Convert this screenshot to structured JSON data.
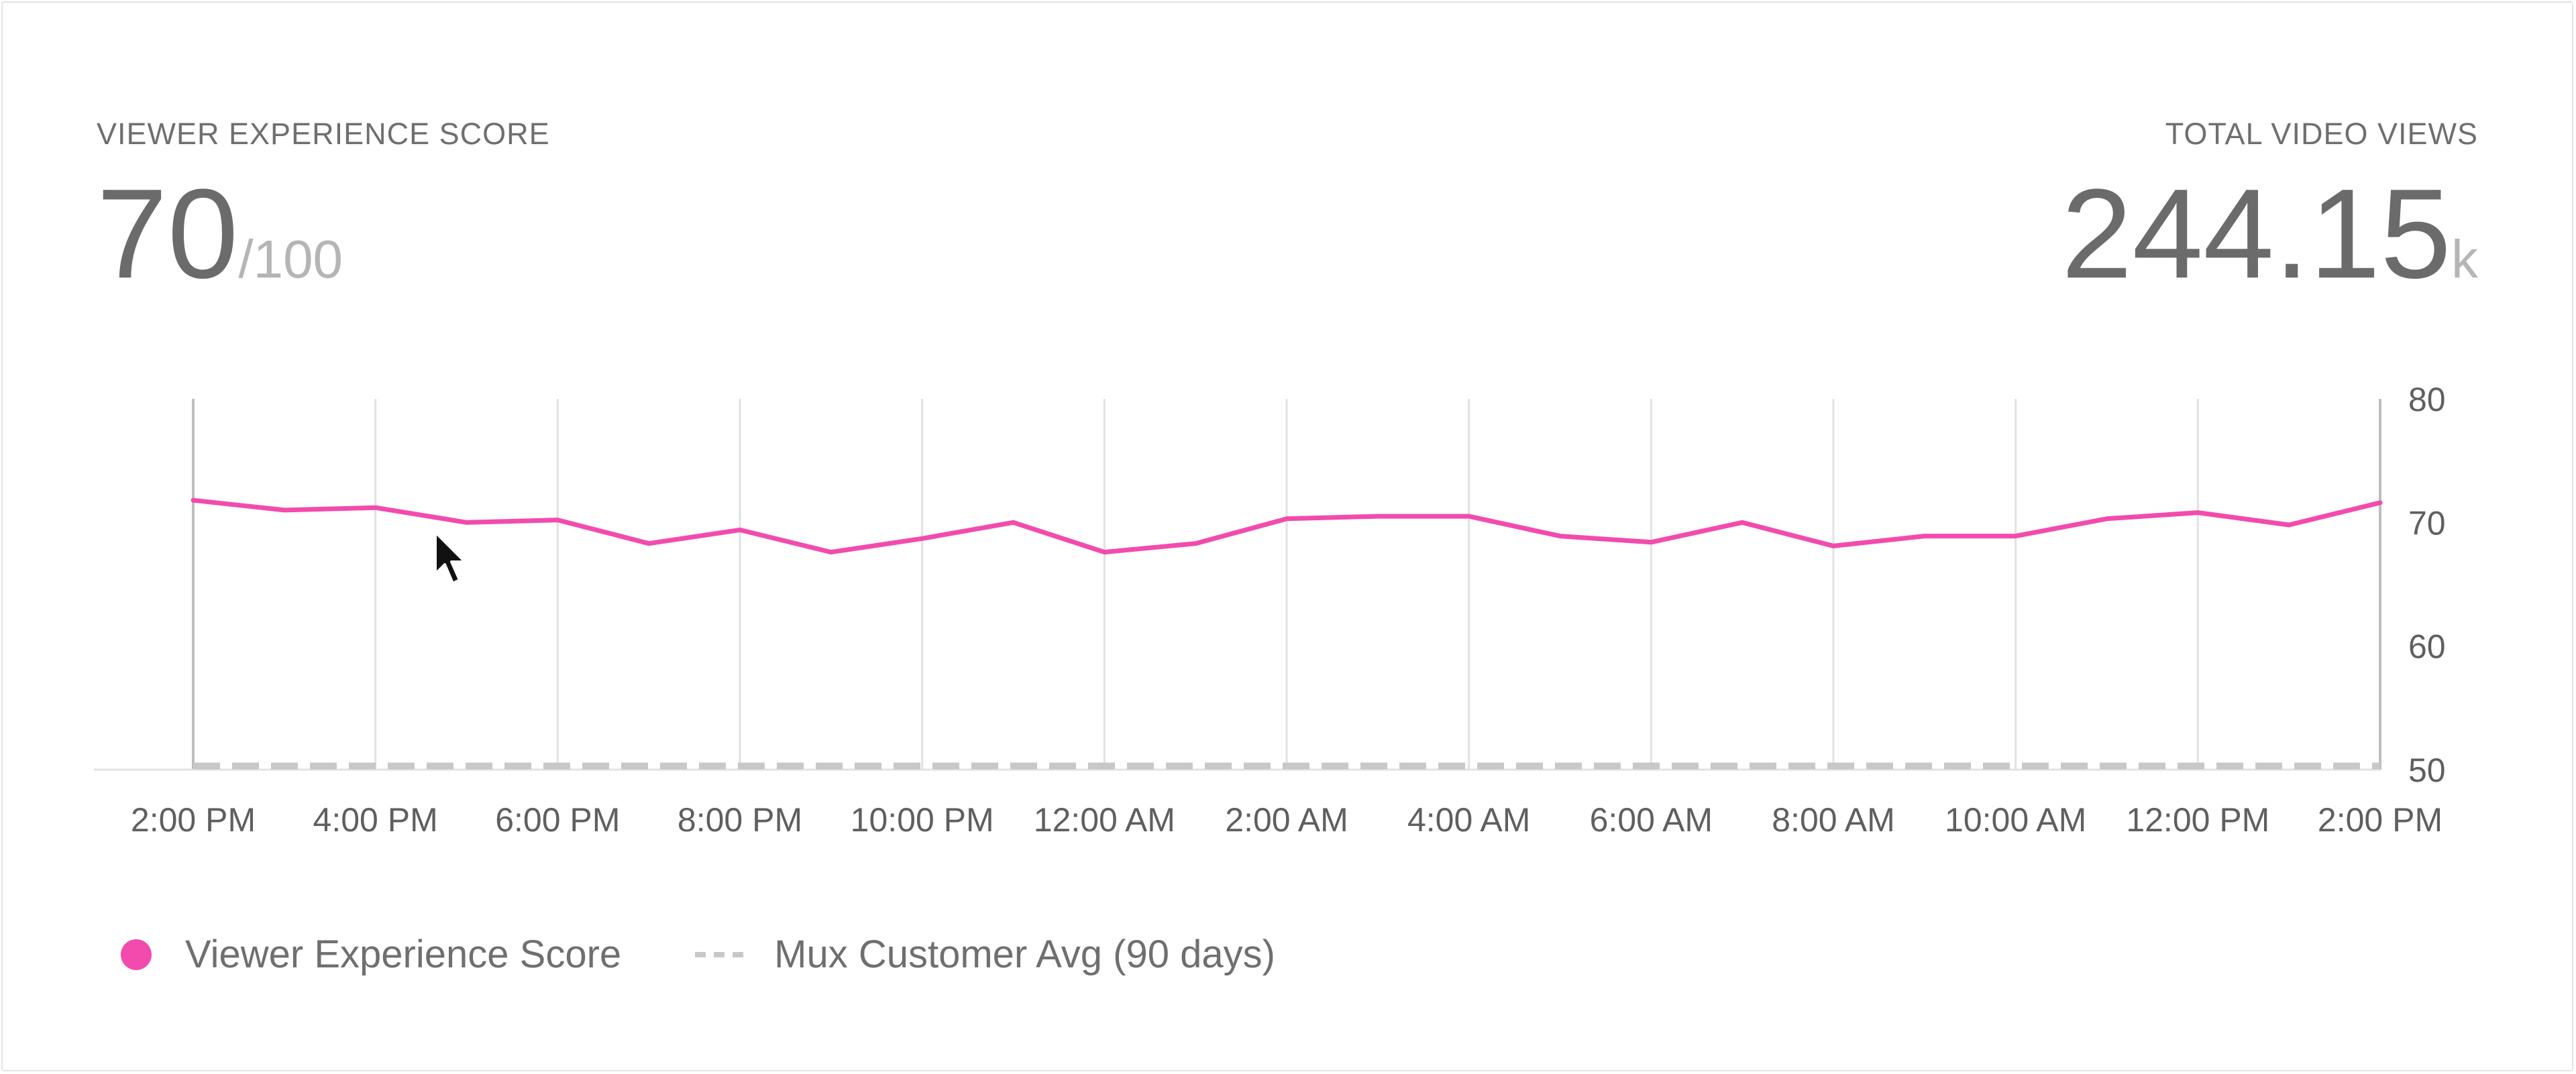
{
  "metrics": {
    "score": {
      "label": "VIEWER EXPERIENCE SCORE",
      "value": "70",
      "suffix": "/100"
    },
    "views": {
      "label": "TOTAL VIDEO VIEWS",
      "value": "244.15",
      "suffix": "k"
    }
  },
  "colors": {
    "series": "#f24bad",
    "benchmark": "#c8c8c8",
    "grid": "#e2e2e2",
    "axis": "#bdbdbd"
  },
  "chart_data": {
    "type": "line",
    "x_tick_labels": [
      "2:00 PM",
      "4:00 PM",
      "6:00 PM",
      "8:00 PM",
      "10:00 PM",
      "12:00 AM",
      "2:00 AM",
      "4:00 AM",
      "6:00 AM",
      "8:00 AM",
      "10:00 AM",
      "12:00 PM",
      "2:00 PM"
    ],
    "x_step_hours": 1,
    "y_ticks": [
      80,
      70,
      60,
      50
    ],
    "ylim": [
      50,
      80
    ],
    "y_axis_position": "right",
    "grid": "vertical",
    "series": [
      {
        "name": "Viewer Experience Score",
        "values": [
          71.8,
          71.0,
          71.2,
          70.0,
          70.2,
          68.3,
          69.4,
          67.6,
          68.7,
          70.0,
          67.6,
          68.3,
          70.3,
          70.5,
          70.5,
          68.9,
          68.4,
          70.0,
          68.1,
          68.9,
          68.9,
          70.3,
          70.8,
          69.8,
          71.6
        ]
      },
      {
        "name": "Mux Customer Avg (90 days)",
        "values": [
          50.3,
          50.3,
          50.3,
          50.3,
          50.3,
          50.3,
          50.3,
          50.3,
          50.3,
          50.3,
          50.3,
          50.3,
          50.3,
          50.3,
          50.3,
          50.3,
          50.3,
          50.3,
          50.3,
          50.3,
          50.3,
          50.3,
          50.3,
          50.3,
          50.3
        ],
        "style": "dashed"
      }
    ]
  },
  "legend": {
    "items": [
      {
        "label": "Viewer Experience Score",
        "icon": "pink-dot-icon"
      },
      {
        "label": "Mux Customer Avg (90 days)",
        "icon": "gray-dash-icon"
      }
    ]
  }
}
